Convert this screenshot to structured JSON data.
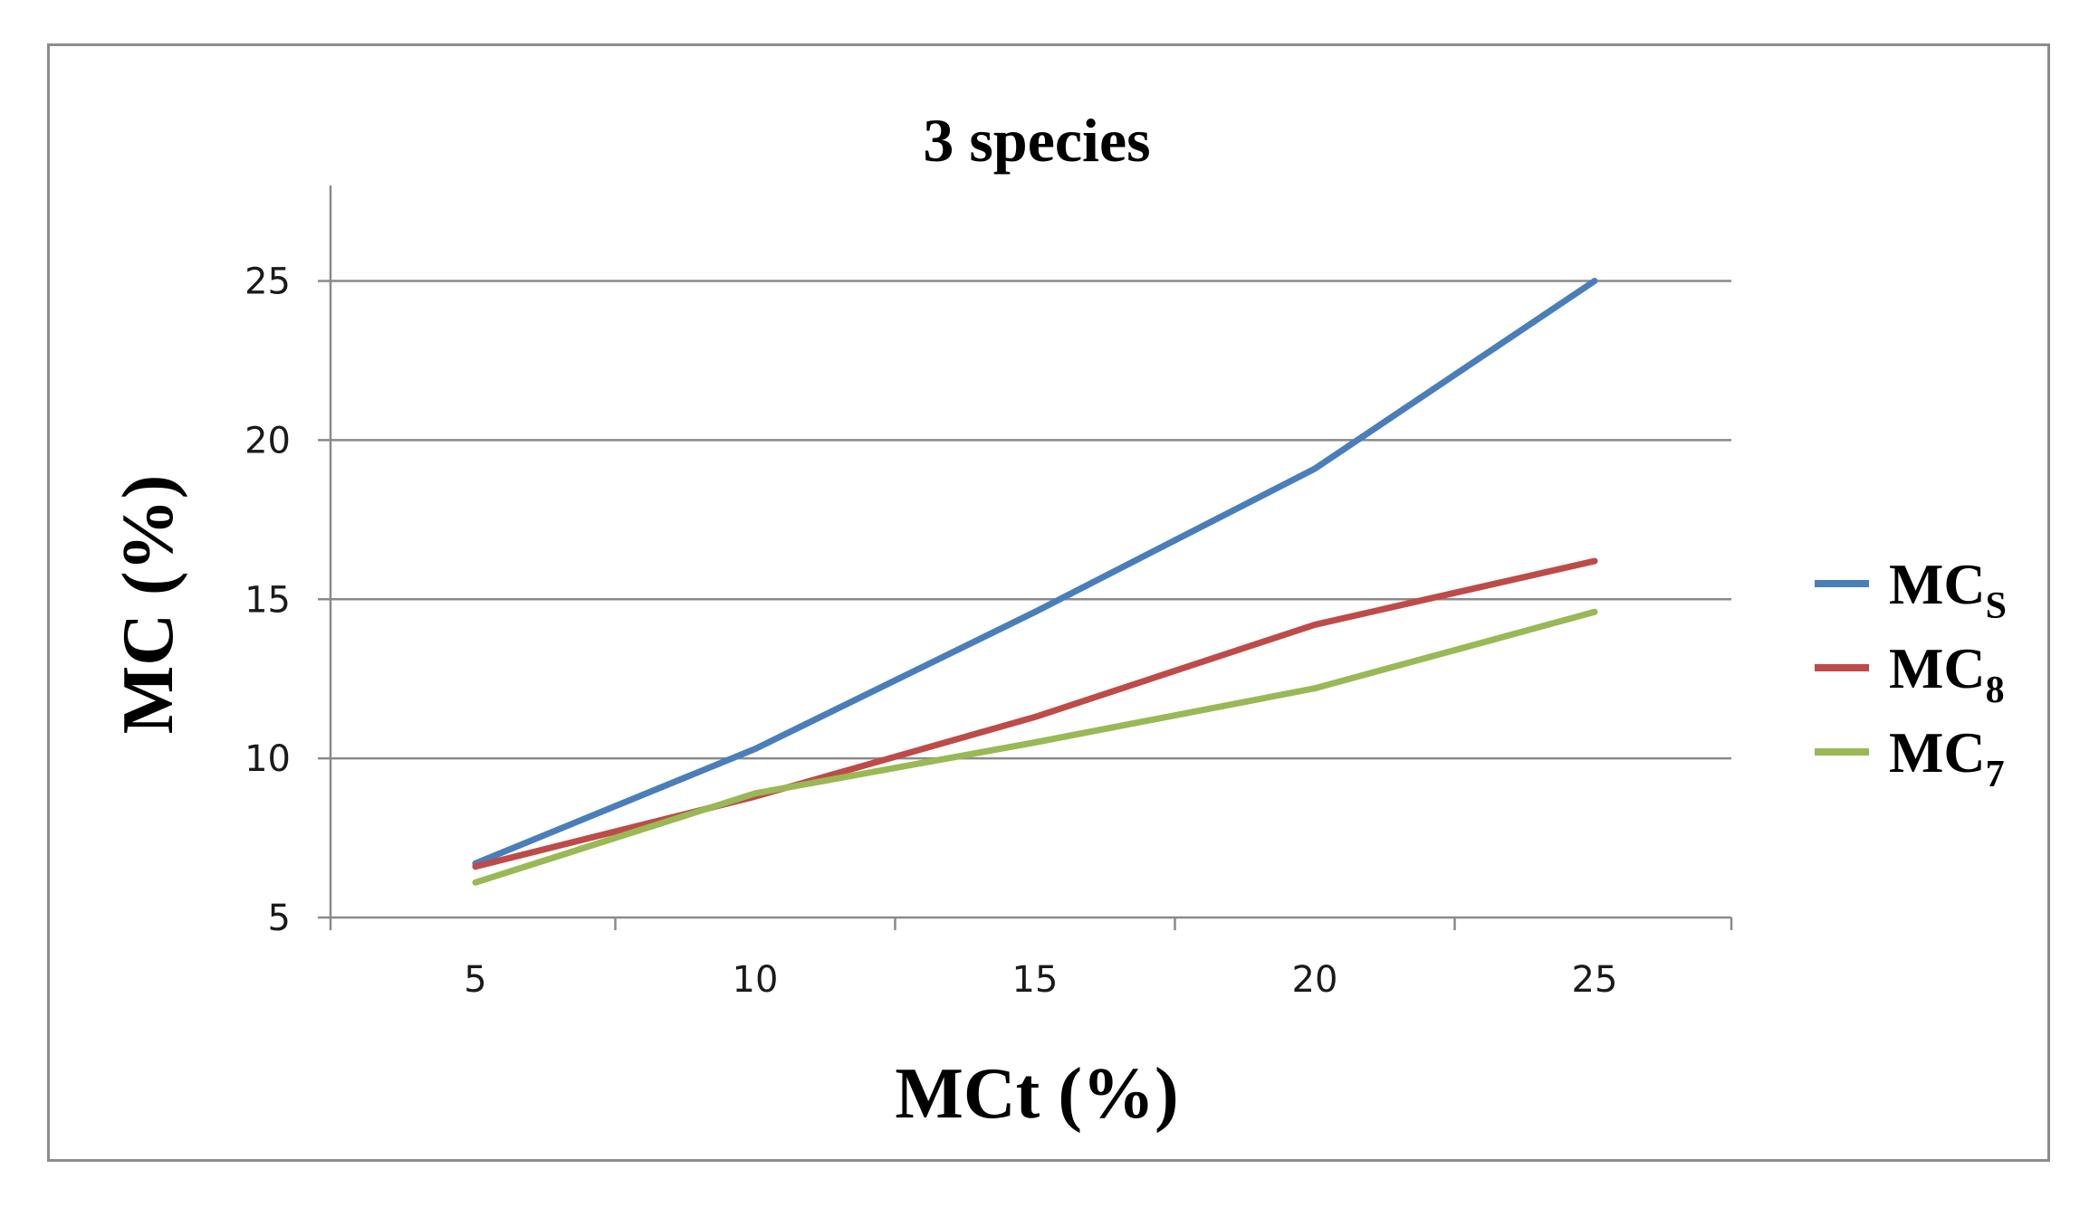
{
  "chart_data": {
    "type": "line",
    "title": "3 species",
    "xlabel": "MCt (%)",
    "ylabel": "MC (%)",
    "x": [
      5,
      10,
      15,
      20,
      25
    ],
    "x_ticks": [
      "5",
      "10",
      "15",
      "20",
      "25"
    ],
    "y_ticks": [
      "5",
      "10",
      "15",
      "20",
      "25"
    ],
    "y_tick_values": [
      5,
      10,
      15,
      20,
      25
    ],
    "ylim": [
      5,
      28
    ],
    "grid": true,
    "legend_position": "right",
    "series": [
      {
        "name": "MC",
        "subscript": "S",
        "color": "#4a7ebb",
        "values": [
          6.7,
          10.3,
          14.6,
          19.1,
          25.0
        ]
      },
      {
        "name": "MC",
        "subscript": "8",
        "color": "#be4b48",
        "values": [
          6.6,
          8.8,
          11.3,
          14.2,
          16.2
        ]
      },
      {
        "name": "MC",
        "subscript": "7",
        "color": "#98b954",
        "values": [
          6.1,
          8.9,
          10.5,
          12.2,
          14.6
        ]
      }
    ]
  }
}
